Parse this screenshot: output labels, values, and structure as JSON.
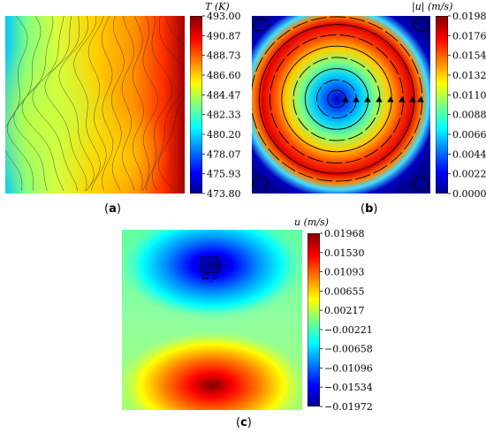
{
  "panels": {
    "a": {
      "label_open": "(",
      "label_letter": "a",
      "label_close": ")"
    },
    "b": {
      "label_open": "(",
      "label_letter": "b",
      "label_close": ")"
    },
    "c": {
      "label_open": "(",
      "label_letter": "c",
      "label_close": ")",
      "region_label": "Ω_c"
    }
  },
  "chart_data": [
    {
      "panel": "a",
      "type": "heatmap",
      "title": "",
      "colorbar": {
        "title": "T (K)",
        "unit": "K",
        "ticks": [
          "493.00",
          "490.87",
          "488.73",
          "486.60",
          "484.47",
          "482.33",
          "480.20",
          "478.07",
          "475.93",
          "473.80"
        ],
        "range": [
          473.8,
          493.0
        ],
        "colormap": "jet"
      },
      "grid": false
    },
    {
      "panel": "b",
      "type": "heatmap",
      "title": "",
      "colorbar": {
        "title": "|u| (m/s)",
        "unit": "m/s",
        "ticks": [
          "0.0198",
          "0.0176",
          "0.0154",
          "0.0132",
          "0.0110",
          "0.0088",
          "0.0066",
          "0.0044",
          "0.0022",
          "0.0000"
        ],
        "range": [
          0.0,
          0.0198
        ],
        "colormap": "jet"
      },
      "overlay": "streamlines",
      "grid": false
    },
    {
      "panel": "c",
      "type": "heatmap",
      "title": "",
      "colorbar": {
        "title": "u (m/s)",
        "unit": "m/s",
        "ticks": [
          "0.01968",
          "0.01530",
          "0.01093",
          "0.00655",
          "0.00217",
          "−0.00221",
          "−0.00658",
          "−0.01096",
          "−0.01534",
          "−0.01972"
        ],
        "range": [
          -0.01972,
          0.01968
        ],
        "colormap": "jet"
      },
      "grid": false
    }
  ],
  "colors": {
    "jet": [
      "#00008f",
      "#0000ff",
      "#0080ff",
      "#00ffff",
      "#80ff80",
      "#ffff00",
      "#ff8000",
      "#ff0000",
      "#800000"
    ]
  }
}
